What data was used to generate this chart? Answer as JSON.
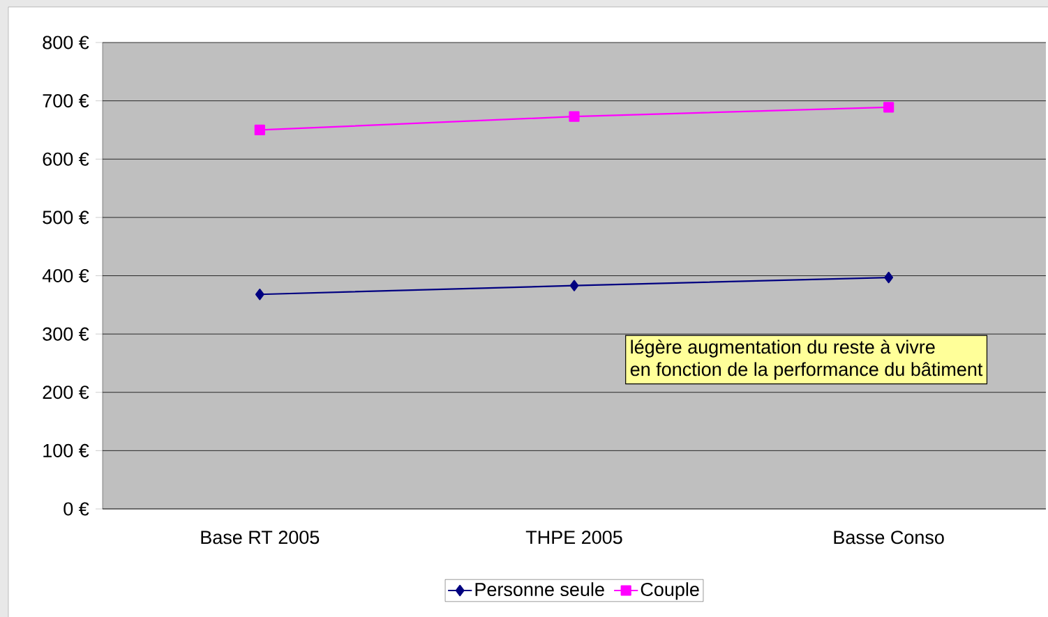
{
  "chart_data": {
    "type": "line",
    "categories": [
      "Base RT 2005",
      "THPE 2005",
      "Basse Conso"
    ],
    "series": [
      {
        "name": "Personne seule",
        "color": "#000080",
        "marker": "diamond",
        "values": [
          368,
          383,
          397
        ]
      },
      {
        "name": "Couple",
        "color": "#ff00ff",
        "marker": "square",
        "values": [
          650,
          673,
          689
        ]
      }
    ],
    "ylim": [
      0,
      800
    ],
    "yticks": [
      {
        "value": 0,
        "label": "0 €"
      },
      {
        "value": 100,
        "label": "100 €"
      },
      {
        "value": 200,
        "label": "200 €"
      },
      {
        "value": 300,
        "label": "300 €"
      },
      {
        "value": 400,
        "label": "400 €"
      },
      {
        "value": 500,
        "label": "500 €"
      },
      {
        "value": 600,
        "label": "600 €"
      },
      {
        "value": 700,
        "label": "700 €"
      },
      {
        "value": 800,
        "label": "800 €"
      }
    ],
    "grid": "y",
    "legend": "bottom",
    "line_style": "solid",
    "annotations": [
      "légère augmentation du  reste à vivre",
      "en fonction de la performance du bâtiment"
    ]
  }
}
